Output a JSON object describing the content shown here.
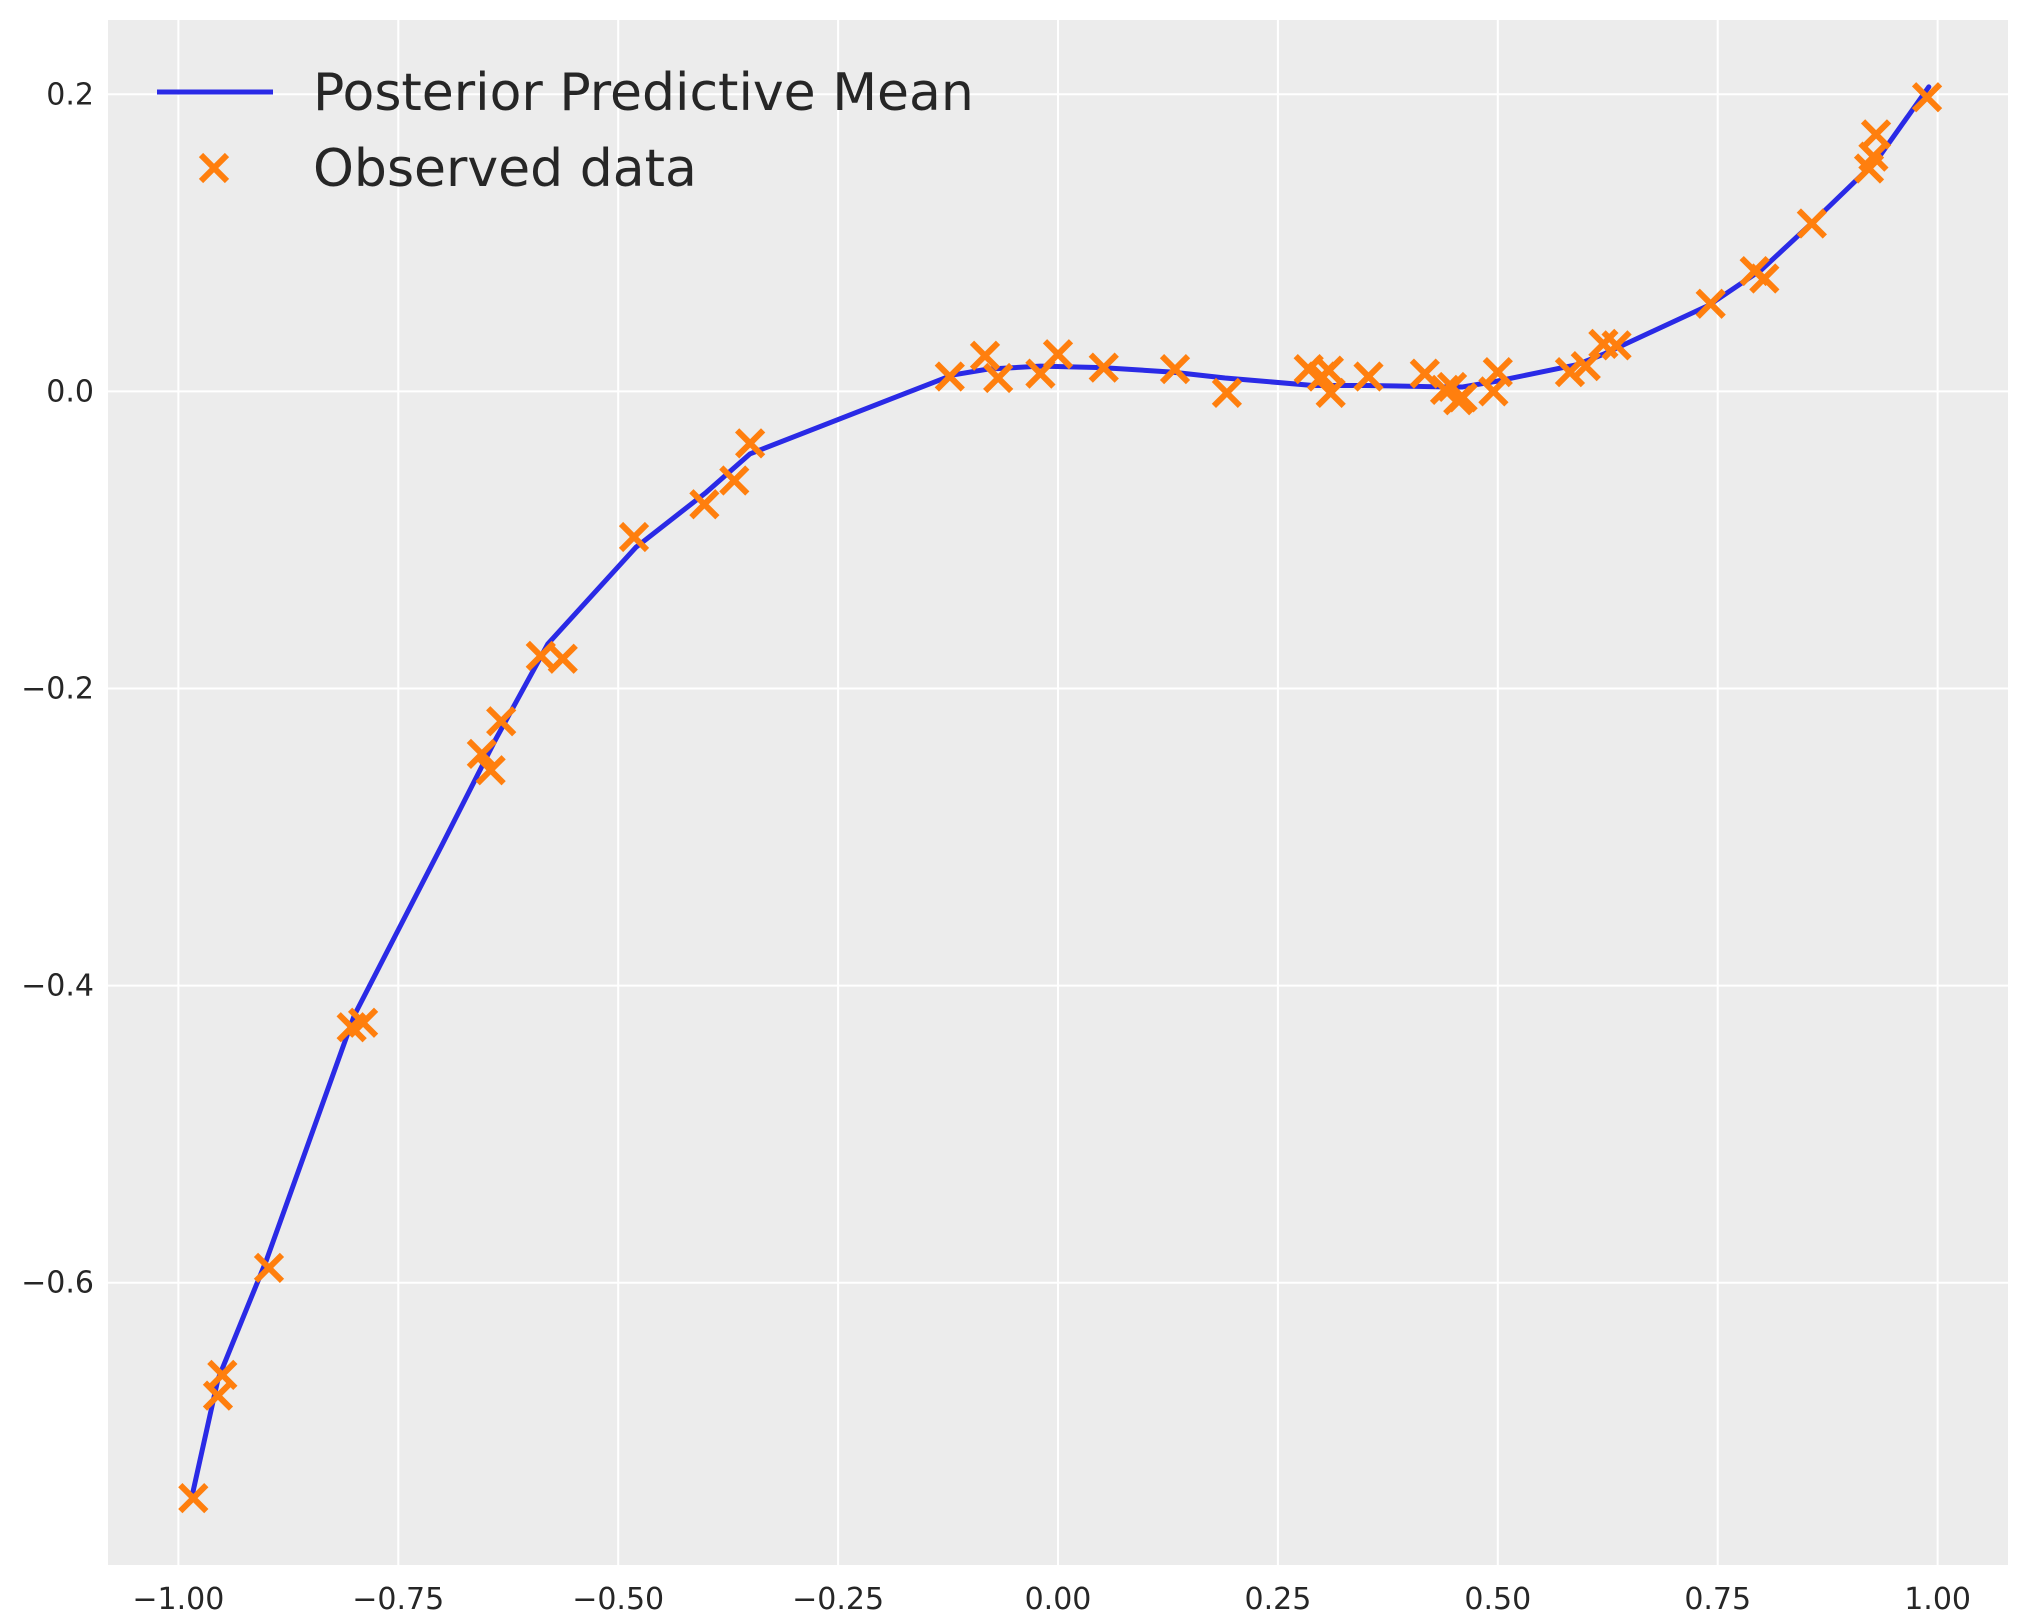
{
  "chart_data": {
    "type": "line",
    "title": "",
    "xlabel": "",
    "ylabel": "",
    "xlim": [
      -1.08,
      1.08
    ],
    "ylim": [
      -0.79,
      0.25
    ],
    "grid": true,
    "legend_position": "top-left",
    "x_ticks": [
      -1.0,
      -0.75,
      -0.5,
      -0.25,
      0.0,
      0.25,
      0.5,
      0.75,
      1.0
    ],
    "x_tick_labels": [
      "−1.00",
      "−0.75",
      "−0.50",
      "−0.25",
      "0.00",
      "0.25",
      "0.50",
      "0.75",
      "1.00"
    ],
    "y_ticks": [
      -0.6,
      -0.4,
      -0.2,
      0.0,
      0.2
    ],
    "y_tick_labels": [
      "−0.6",
      "−0.4",
      "−0.2",
      "0.0",
      "0.2"
    ],
    "series": [
      {
        "name": "Posterior Predictive Mean",
        "kind": "line",
        "color": "#2a2ae6",
        "x": [
          -0.985,
          -0.955,
          -0.9,
          -0.8,
          -0.7,
          -0.64,
          -0.58,
          -0.48,
          -0.4,
          -0.35,
          -0.12,
          -0.08,
          -0.02,
          0.05,
          0.13,
          0.19,
          0.29,
          0.31,
          0.35,
          0.44,
          0.46,
          0.5,
          0.59,
          0.62,
          0.74,
          0.8,
          0.86,
          0.93,
          0.99
        ],
        "y": [
          -0.745,
          -0.665,
          -0.585,
          -0.42,
          -0.305,
          -0.235,
          -0.17,
          -0.105,
          -0.068,
          -0.042,
          0.011,
          0.015,
          0.017,
          0.016,
          0.013,
          0.009,
          0.004,
          0.004,
          0.004,
          0.003,
          0.003,
          0.007,
          0.018,
          0.025,
          0.058,
          0.082,
          0.115,
          0.155,
          0.205
        ]
      },
      {
        "name": "Observed data",
        "kind": "scatter",
        "marker": "x",
        "color": "#ff7f0e",
        "x": [
          -0.983,
          -0.955,
          -0.95,
          -0.897,
          -0.803,
          -0.79,
          -0.655,
          -0.645,
          -0.633,
          -0.588,
          -0.563,
          -0.482,
          -0.402,
          -0.368,
          -0.35,
          -0.123,
          -0.083,
          -0.068,
          -0.02,
          0.0,
          0.052,
          0.133,
          0.192,
          0.285,
          0.3,
          0.308,
          0.31,
          0.353,
          0.417,
          0.44,
          0.448,
          0.455,
          0.46,
          0.495,
          0.5,
          0.582,
          0.6,
          0.62,
          0.635,
          0.742,
          0.792,
          0.803,
          0.857,
          0.922,
          0.927,
          0.93,
          0.988
        ],
        "y": [
          -0.745,
          -0.676,
          -0.662,
          -0.59,
          -0.428,
          -0.425,
          -0.244,
          -0.255,
          -0.222,
          -0.178,
          -0.18,
          -0.098,
          -0.076,
          -0.06,
          -0.035,
          0.01,
          0.024,
          0.009,
          0.012,
          0.025,
          0.016,
          0.015,
          -0.001,
          0.015,
          0.01,
          0.014,
          -0.001,
          0.01,
          0.012,
          0.001,
          0.003,
          -0.006,
          -0.004,
          0.0,
          0.013,
          0.013,
          0.017,
          0.032,
          0.031,
          0.059,
          0.081,
          0.076,
          0.113,
          0.15,
          0.158,
          0.173,
          0.198
        ]
      }
    ]
  },
  "colors": {
    "plot_background": "#ececec",
    "grid": "#ffffff",
    "line": "#2a2ae6",
    "marker": "#ff7f0e"
  }
}
